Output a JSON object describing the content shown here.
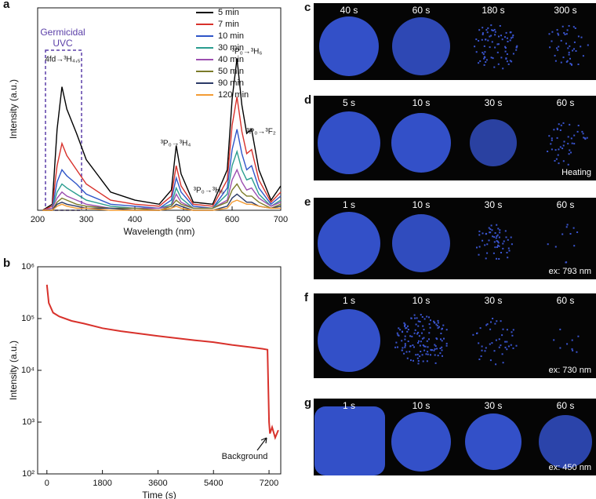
{
  "chart_data": [
    {
      "type": "line",
      "label": "a",
      "xlabel": "Wavelength (nm)",
      "ylabel": "Intensity (a.u.)",
      "xlim": [
        200,
        700
      ],
      "ylim": [
        0,
        100
      ],
      "xticks": [
        200,
        300,
        400,
        500,
        600,
        700
      ],
      "x": [
        210,
        230,
        240,
        250,
        260,
        280,
        300,
        350,
        400,
        450,
        475,
        485,
        495,
        520,
        560,
        590,
        600,
        610,
        620,
        630,
        640,
        655,
        680,
        700
      ],
      "series": [
        {
          "name": "5 min",
          "color": "#000000",
          "values": [
            0,
            3,
            40,
            61,
            50,
            38,
            25,
            9,
            5,
            3,
            10,
            32,
            18,
            4,
            3,
            20,
            55,
            75,
            52,
            38,
            40,
            20,
            5,
            12
          ]
        },
        {
          "name": "7 min",
          "color": "#d8312b",
          "values": [
            0,
            2,
            22,
            33,
            27,
            20,
            13,
            5,
            3,
            2,
            7,
            22,
            12,
            3,
            2,
            15,
            42,
            56,
            39,
            28,
            30,
            15,
            4,
            9
          ]
        },
        {
          "name": "10 min",
          "color": "#2f55c8",
          "values": [
            0,
            1,
            14,
            20,
            17,
            13,
            8,
            3,
            2,
            1,
            5,
            16,
            9,
            2,
            1,
            11,
            30,
            40,
            28,
            20,
            22,
            11,
            3,
            7
          ]
        },
        {
          "name": "30 min",
          "color": "#2a9d8f",
          "values": [
            0,
            1,
            9,
            13,
            11,
            8,
            5,
            2,
            1,
            1,
            3,
            11,
            6,
            1,
            1,
            8,
            22,
            29,
            20,
            15,
            16,
            8,
            2,
            5
          ]
        },
        {
          "name": "40 min",
          "color": "#9c4fb0",
          "values": [
            0,
            1,
            6,
            9,
            7,
            5,
            3,
            1,
            1,
            1,
            2,
            8,
            4,
            1,
            1,
            5,
            15,
            20,
            14,
            10,
            11,
            6,
            2,
            4
          ]
        },
        {
          "name": "50 min",
          "color": "#7b7b2a",
          "values": [
            0,
            0,
            4,
            6,
            5,
            3,
            2,
            1,
            1,
            0,
            2,
            5,
            3,
            1,
            1,
            4,
            10,
            13,
            9,
            7,
            7,
            4,
            1,
            3
          ]
        },
        {
          "name": "90 min",
          "color": "#2b3a67",
          "values": [
            0,
            0,
            3,
            4,
            3,
            2,
            1,
            1,
            0,
            0,
            1,
            3,
            2,
            0,
            0,
            2,
            6,
            8,
            6,
            4,
            4,
            2,
            1,
            2
          ]
        },
        {
          "name": "120 min",
          "color": "#f39c34",
          "values": [
            0,
            0,
            2,
            3,
            2,
            1,
            1,
            0,
            0,
            0,
            1,
            2,
            1,
            0,
            0,
            1,
            4,
            5,
            4,
            3,
            3,
            2,
            1,
            1
          ]
        }
      ],
      "annotations": [
        "Germicidal",
        "UVC",
        "4fd→³H₄,₅",
        "³P₀→³H₆",
        "³P₀→³H₄",
        "³P₀→³H₅",
        "³P₀→³F₂"
      ]
    },
    {
      "type": "line",
      "label": "b",
      "xlabel": "Time (s)",
      "ylabel": "Intensity (a.u.)",
      "log_y": true,
      "xlim": [
        -300,
        7580
      ],
      "ylim": [
        100,
        1000000
      ],
      "xticks": [
        0,
        1800,
        3600,
        5400,
        7200
      ],
      "yticks": [
        {
          "value": 100,
          "label": "10²"
        },
        {
          "value": 1000,
          "label": "10³"
        },
        {
          "value": 10000,
          "label": "10⁴"
        },
        {
          "value": 100000,
          "label": "10⁵"
        },
        {
          "value": 1000000,
          "label": "10⁶"
        }
      ],
      "x": [
        0,
        60,
        200,
        400,
        800,
        1200,
        1800,
        2400,
        3600,
        4800,
        5400,
        6000,
        6600,
        7000,
        7150,
        7200,
        7230,
        7300,
        7400,
        7500
      ],
      "series": [
        {
          "name": "decay",
          "color": "#d8312b",
          "values": [
            450000,
            200000,
            130000,
            110000,
            90000,
            80000,
            65000,
            57000,
            46000,
            38000,
            35000,
            31000,
            28000,
            26000,
            25000,
            1000,
            600,
            800,
            500,
            700
          ]
        }
      ],
      "annotations": [
        "Background"
      ]
    }
  ],
  "panels": [
    {
      "label": "c",
      "times": [
        "40 s",
        "60 s",
        "180 s",
        "300 s"
      ]
    },
    {
      "label": "d",
      "times": [
        "5 s",
        "10 s",
        "30 s",
        "60 s"
      ],
      "note": "Heating"
    },
    {
      "label": "e",
      "times": [
        "1 s",
        "10 s",
        "30 s",
        "60 s"
      ],
      "note": "ex: 793 nm"
    },
    {
      "label": "f",
      "times": [
        "1 s",
        "10 s",
        "30 s",
        "60 s"
      ],
      "note": "ex: 730 nm"
    },
    {
      "label": "g",
      "times": [
        "1 s",
        "10 s",
        "30 s",
        "60 s"
      ],
      "note": "ex: 450 nm"
    }
  ]
}
